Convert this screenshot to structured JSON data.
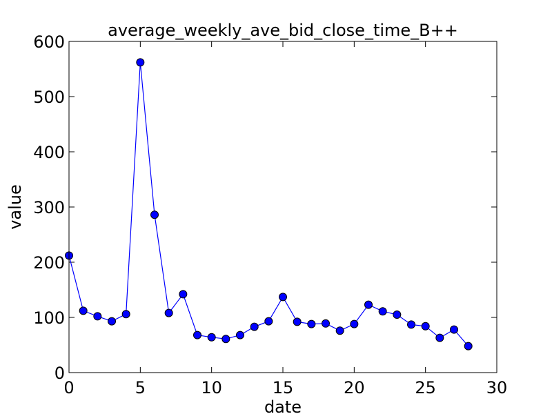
{
  "chart_data": {
    "type": "line",
    "title": "average_weekly_ave_bid_close_time_B++",
    "xlabel": "date",
    "ylabel": "value",
    "xlim": [
      0,
      30
    ],
    "ylim": [
      0,
      600
    ],
    "x_ticks": [
      0,
      5,
      10,
      15,
      20,
      25,
      30
    ],
    "y_ticks": [
      0,
      100,
      200,
      300,
      400,
      500,
      600
    ],
    "grid": false,
    "series": [
      {
        "color": "#0000ff",
        "marker": "circle",
        "x": [
          0,
          1,
          2,
          3,
          4,
          5,
          6,
          7,
          8,
          9,
          10,
          11,
          12,
          13,
          14,
          15,
          16,
          17,
          18,
          19,
          20,
          21,
          22,
          23,
          24,
          25,
          26,
          27,
          28
        ],
        "y": [
          212,
          112,
          102,
          93,
          106,
          562,
          286,
          108,
          142,
          68,
          64,
          61,
          68,
          83,
          93,
          137,
          92,
          88,
          89,
          76,
          88,
          123,
          111,
          105,
          87,
          84,
          63,
          78,
          48
        ]
      }
    ]
  }
}
